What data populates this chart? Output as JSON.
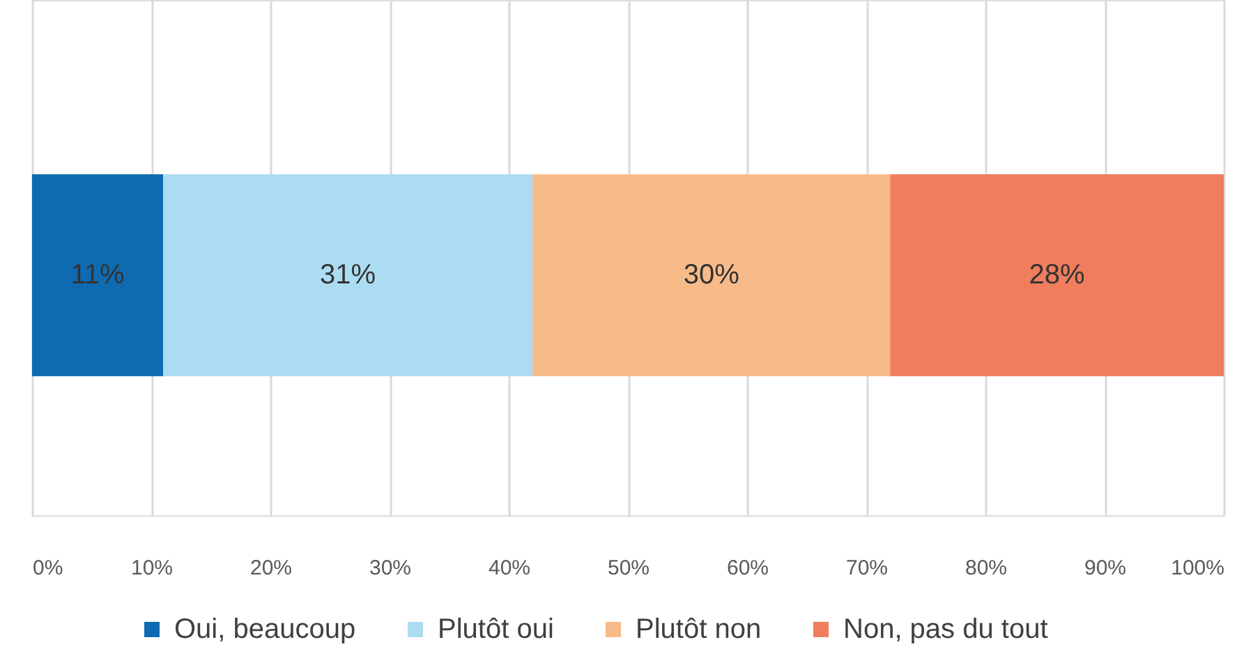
{
  "chart_data": {
    "type": "bar",
    "orientation": "horizontal",
    "stacked": true,
    "categories": [
      null
    ],
    "series": [
      {
        "name": "Oui, beaucoup",
        "color": "#0f6bb1",
        "values": [
          11
        ],
        "value_labels": [
          "11%"
        ]
      },
      {
        "name": "Plutôt oui",
        "color": "#acdcf2",
        "values": [
          31
        ],
        "value_labels": [
          "31%"
        ]
      },
      {
        "name": "Plutôt non",
        "color": "#f7bb8a",
        "values": [
          30
        ],
        "value_labels": [
          "30%"
        ]
      },
      {
        "name": "Non, pas du tout",
        "color": "#ef7d5e",
        "values": [
          28
        ],
        "value_labels": [
          "28%"
        ]
      }
    ],
    "xlim": [
      0,
      100
    ],
    "xticks": [
      {
        "value": 0,
        "label": "0%"
      },
      {
        "value": 10,
        "label": "10%"
      },
      {
        "value": 20,
        "label": "20%"
      },
      {
        "value": 30,
        "label": "30%"
      },
      {
        "value": 40,
        "label": "40%"
      },
      {
        "value": 50,
        "label": "50%"
      },
      {
        "value": 60,
        "label": "60%"
      },
      {
        "value": 70,
        "label": "70%"
      },
      {
        "value": 80,
        "label": "80%"
      },
      {
        "value": 90,
        "label": "90%"
      },
      {
        "value": 100,
        "label": "100%"
      }
    ],
    "grid": "x",
    "legend": "bottom"
  }
}
